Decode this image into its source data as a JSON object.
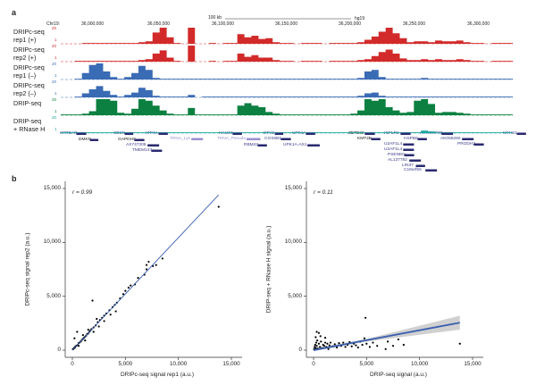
{
  "panel_a": {
    "letter": "a",
    "scale_bar_label": "100 kb",
    "assembly": "hg19",
    "chrom": "Chr19:",
    "coords": [
      "36,000,000",
      "36,050,000",
      "36,100,000",
      "36,150,000",
      "36,200,000",
      "36,250,000",
      "36,300,000"
    ],
    "scale_max": "20",
    "scale_min": "1",
    "tracks": [
      {
        "label1": "DRIPc-seq",
        "label2": "rep1 (+)",
        "color": "#d22a2a",
        "values": [
          0,
          0,
          0,
          1,
          1,
          1,
          1,
          1,
          1,
          1,
          1,
          2,
          3,
          14,
          20,
          8,
          1,
          0,
          20,
          0,
          0,
          1,
          0,
          1,
          1,
          12,
          8,
          10,
          6,
          7,
          2,
          1,
          1,
          0,
          1,
          1,
          1,
          0,
          1,
          1,
          1,
          1,
          2,
          5,
          9,
          15,
          20,
          13,
          7,
          2,
          3,
          3,
          2,
          4,
          3,
          3,
          4,
          2,
          1,
          1,
          0,
          1,
          1,
          1
        ]
      },
      {
        "label1": "DRIPc-seq",
        "label2": "rep2 (+)",
        "color": "#d22a2a",
        "values": [
          0,
          0,
          1,
          1,
          1,
          1,
          1,
          1,
          1,
          1,
          1,
          2,
          3,
          10,
          14,
          5,
          1,
          0,
          20,
          0,
          0,
          1,
          0,
          1,
          1,
          10,
          6,
          8,
          5,
          5,
          2,
          1,
          1,
          0,
          1,
          1,
          1,
          0,
          1,
          1,
          1,
          1,
          2,
          3,
          7,
          12,
          15,
          10,
          4,
          2,
          2,
          3,
          2,
          3,
          2,
          2,
          3,
          2,
          1,
          1,
          0,
          1,
          1,
          1
        ]
      },
      {
        "label1": "DRIPc-seq",
        "label2": "rep1 (–)",
        "color": "#3a6bb5",
        "values": [
          0,
          0,
          1,
          8,
          18,
          20,
          10,
          3,
          1,
          3,
          8,
          17,
          12,
          2,
          1,
          1,
          1,
          1,
          1,
          1,
          1,
          1,
          1,
          1,
          1,
          1,
          1,
          1,
          1,
          1,
          1,
          1,
          1,
          1,
          1,
          1,
          1,
          1,
          1,
          1,
          1,
          1,
          2,
          10,
          12,
          3,
          1,
          1,
          1,
          1,
          1,
          2,
          1,
          1,
          1,
          1,
          1,
          1,
          1,
          1,
          1,
          1,
          1,
          1
        ]
      },
      {
        "label1": "DRIPc-seq",
        "label2": "rep2 (–)",
        "color": "#3a6bb5",
        "values": [
          0,
          0,
          1,
          5,
          10,
          14,
          8,
          3,
          1,
          3,
          6,
          12,
          9,
          2,
          1,
          1,
          1,
          1,
          3,
          0,
          1,
          1,
          1,
          1,
          1,
          1,
          1,
          1,
          1,
          1,
          1,
          1,
          1,
          1,
          1,
          1,
          1,
          1,
          1,
          1,
          1,
          1,
          2,
          5,
          6,
          2,
          1,
          1,
          1,
          1,
          1,
          1,
          1,
          1,
          1,
          1,
          1,
          1,
          1,
          1,
          1,
          1,
          1,
          1
        ]
      },
      {
        "label1": "DRIP-seq",
        "label2": "",
        "color": "#0b8040",
        "values": [
          1,
          1,
          1,
          2,
          5,
          20,
          20,
          18,
          3,
          2,
          8,
          20,
          18,
          12,
          6,
          2,
          1,
          1,
          9,
          1,
          1,
          1,
          1,
          1,
          1,
          12,
          15,
          12,
          10,
          4,
          2,
          1,
          1,
          1,
          1,
          1,
          1,
          1,
          1,
          1,
          1,
          2,
          6,
          20,
          18,
          20,
          10,
          6,
          3,
          4,
          18,
          20,
          14,
          3,
          4,
          4,
          3,
          2,
          1,
          1,
          1,
          1,
          1,
          1
        ]
      },
      {
        "label1": "DRIP-seq",
        "label2": "+ RNase H",
        "color": "#1aa6a0",
        "values": [
          1,
          1,
          1,
          1,
          1,
          1,
          1,
          1,
          1,
          1,
          1,
          1,
          1,
          1,
          1,
          1,
          1,
          1,
          1,
          1,
          1,
          1,
          1,
          1,
          1,
          1,
          1,
          1,
          1,
          1,
          1,
          1,
          1,
          1,
          1,
          1,
          1,
          1,
          1,
          1,
          1,
          1,
          1,
          1,
          1,
          1,
          1,
          1,
          1,
          1,
          1,
          3,
          2,
          1,
          1,
          1,
          1,
          1,
          1,
          1,
          1,
          1,
          1,
          1
        ]
      }
    ],
    "genes": [
      "KRTDAP",
      "DMKN",
      "SBSN",
      "GAPDHS",
      "ATP4A",
      "TRNA_Lys",
      "AX747305",
      "TMEM147",
      "HAUS5",
      "TRNA_Pseudo",
      "RBM42",
      "ETV2",
      "COX6B1",
      "UPK1A",
      "UPK1A-AS1",
      "ZBTB32",
      "KMT2B",
      "IGFLR1",
      "HSPB6",
      "U2AF1L4",
      "U2AF1L4",
      "PSENEN",
      "AL137782",
      "LIN37",
      "C19orf55",
      "ARHGAP33",
      "AK055260",
      "PRODH2",
      "NPHS1"
    ]
  },
  "panel_b": {
    "letter": "b"
  },
  "chart_data": [
    {
      "type": "scatter",
      "xlabel": "DRIPc-seq signal rep1 (a.u.)",
      "ylabel": "DRIPc-seq signal rep2 (a.u.)",
      "annotation": "r = 0.99",
      "xlim": [
        0,
        15000
      ],
      "ylim": [
        0,
        15000
      ],
      "xticks": [
        "0",
        "5,000",
        "10,000",
        "15,000"
      ],
      "yticks": [
        "0",
        "5,000",
        "10,000",
        "15,000"
      ],
      "point_color": "#000000",
      "fit_color": "#3a5fb0",
      "fit": [
        [
          0,
          0
        ],
        [
          13800,
          14400
        ]
      ],
      "points": [
        [
          50,
          80
        ],
        [
          100,
          120
        ],
        [
          150,
          180
        ],
        [
          200,
          230
        ],
        [
          250,
          260
        ],
        [
          300,
          350
        ],
        [
          400,
          420
        ],
        [
          500,
          480
        ],
        [
          600,
          650
        ],
        [
          700,
          720
        ],
        [
          800,
          820
        ],
        [
          900,
          950
        ],
        [
          1000,
          1050
        ],
        [
          1100,
          1150
        ],
        [
          1200,
          1250
        ],
        [
          1300,
          1350
        ],
        [
          1400,
          1500
        ],
        [
          1500,
          1550
        ],
        [
          1600,
          1700
        ],
        [
          1700,
          1800
        ],
        [
          1800,
          1950
        ],
        [
          2000,
          2100
        ],
        [
          2200,
          2300
        ],
        [
          2400,
          2600
        ],
        [
          2600,
          2800
        ],
        [
          2800,
          3000
        ],
        [
          3000,
          3200
        ],
        [
          3200,
          3400
        ],
        [
          3500,
          3700
        ],
        [
          3800,
          4000
        ],
        [
          4000,
          4200
        ],
        [
          4200,
          4400
        ],
        [
          4500,
          4800
        ],
        [
          4800,
          5200
        ],
        [
          5000,
          5500
        ],
        [
          5300,
          5800
        ],
        [
          5500,
          6000
        ],
        [
          5900,
          6100
        ],
        [
          6200,
          6700
        ],
        [
          6800,
          7000
        ],
        [
          7000,
          7500
        ],
        [
          7200,
          8200
        ],
        [
          7000,
          7900
        ],
        [
          7600,
          7800
        ],
        [
          7900,
          7900
        ],
        [
          8500,
          8500
        ],
        [
          13800,
          13300
        ],
        [
          1900,
          4600
        ],
        [
          450,
          1700
        ],
        [
          200,
          1100
        ],
        [
          600,
          400
        ],
        [
          1200,
          900
        ],
        [
          2000,
          1700
        ],
        [
          2500,
          2200
        ],
        [
          3000,
          2700
        ],
        [
          3600,
          3300
        ],
        [
          4100,
          3600
        ],
        [
          1000,
          1400
        ],
        [
          1500,
          1900
        ],
        [
          2300,
          2900
        ]
      ]
    },
    {
      "type": "scatter",
      "xlabel": "DRIP-seq signal (a.u.)",
      "ylabel": "DRIP-seq + RNase H signal (a.u.)",
      "annotation": "r = 0.11",
      "xlim": [
        0,
        15000
      ],
      "ylim": [
        0,
        15000
      ],
      "xticks": [
        "0",
        "5,000",
        "10,000",
        "15,000"
      ],
      "yticks": [
        "0",
        "5,000",
        "10,000",
        "15,000"
      ],
      "point_color": "#000000",
      "fit_color": "#3a5fb0",
      "ci_color": "#d0d0d0",
      "fit": [
        [
          0,
          0
        ],
        [
          13800,
          2550
        ]
      ],
      "ci_upper": [
        [
          0,
          150
        ],
        [
          5000,
          1050
        ],
        [
          13800,
          3200
        ]
      ],
      "ci_lower": [
        [
          0,
          -100
        ],
        [
          5000,
          800
        ],
        [
          13800,
          1900
        ]
      ],
      "points": [
        [
          50,
          100
        ],
        [
          100,
          300
        ],
        [
          150,
          500
        ],
        [
          200,
          200
        ],
        [
          250,
          700
        ],
        [
          300,
          400
        ],
        [
          350,
          900
        ],
        [
          400,
          150
        ],
        [
          500,
          600
        ],
        [
          600,
          300
        ],
        [
          700,
          800
        ],
        [
          800,
          200
        ],
        [
          900,
          500
        ],
        [
          1000,
          400
        ],
        [
          1100,
          700
        ],
        [
          1200,
          300
        ],
        [
          1300,
          600
        ],
        [
          1400,
          100
        ],
        [
          1500,
          450
        ],
        [
          1600,
          700
        ],
        [
          1800,
          350
        ],
        [
          2000,
          550
        ],
        [
          2200,
          250
        ],
        [
          2400,
          650
        ],
        [
          2600,
          400
        ],
        [
          2800,
          700
        ],
        [
          3000,
          300
        ],
        [
          3200,
          500
        ],
        [
          3400,
          750
        ],
        [
          3600,
          350
        ],
        [
          3800,
          600
        ],
        [
          4000,
          450
        ],
        [
          4200,
          250
        ],
        [
          4400,
          800
        ],
        [
          4600,
          500
        ],
        [
          4800,
          1100
        ],
        [
          5000,
          600
        ],
        [
          5300,
          300
        ],
        [
          5600,
          700
        ],
        [
          6000,
          400
        ],
        [
          6800,
          100
        ],
        [
          7000,
          800
        ],
        [
          7500,
          400
        ],
        [
          8000,
          1000
        ],
        [
          8500,
          500
        ],
        [
          4900,
          3000
        ],
        [
          13800,
          600
        ],
        [
          300,
          1700
        ],
        [
          500,
          1600
        ],
        [
          200,
          1200
        ],
        [
          650,
          1300
        ],
        [
          1100,
          1150
        ]
      ]
    }
  ]
}
